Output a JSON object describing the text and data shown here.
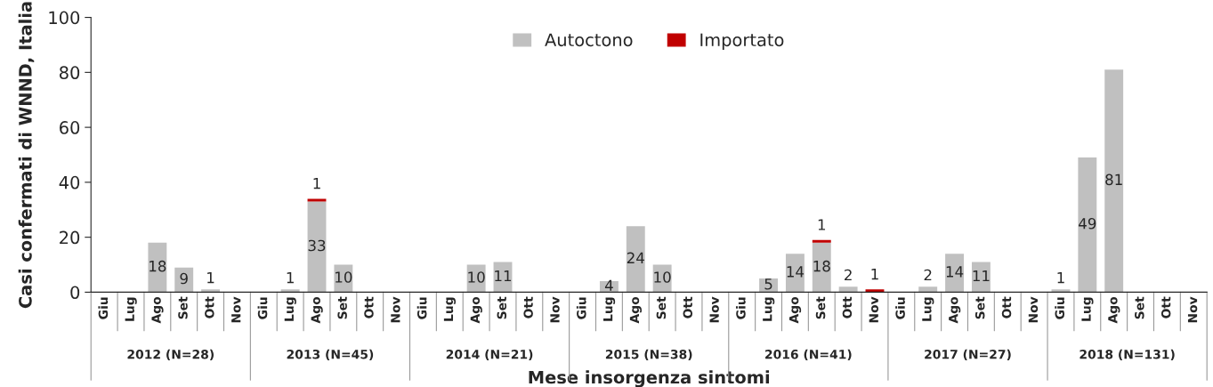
{
  "chart_data": {
    "type": "bar",
    "stacked": true,
    "ylabel": "Casi confermati di WNND, Italia",
    "xlabel": "Mese insorgenza sintomi",
    "categories": [
      "Giu",
      "Lug",
      "Ago",
      "Set",
      "Ott",
      "Nov",
      "Giu",
      "Lug",
      "Ago",
      "Set",
      "Ott",
      "Nov",
      "Giu",
      "Lug",
      "Ago",
      "Set",
      "Ott",
      "Nov",
      "Giu",
      "Lug",
      "Ago",
      "Set",
      "Ott",
      "Nov",
      "Giu",
      "Lug",
      "Ago",
      "Set",
      "Ott",
      "Nov",
      "Giu",
      "Lug",
      "Ago",
      "Set",
      "Ott",
      "Nov",
      "Giu",
      "Lug",
      "Ago",
      "Set",
      "Ott",
      "Nov"
    ],
    "annotations": [
      "2012 (N=28)",
      "2013 (N=45)",
      "2014 (N=21)",
      "2015 (N=38)",
      "2016 (N=41)",
      "2017 (N=27)",
      "2018 (N=131)"
    ],
    "series": [
      {
        "name": "Autoctono",
        "color": "#c0c0c0",
        "values": [
          0,
          0,
          18,
          9,
          1,
          0,
          0,
          1,
          33,
          10,
          0,
          0,
          0,
          0,
          10,
          11,
          0,
          0,
          0,
          4,
          24,
          10,
          0,
          0,
          0,
          5,
          14,
          18,
          2,
          0,
          0,
          2,
          14,
          11,
          0,
          0,
          1,
          49,
          81,
          0,
          0,
          0
        ],
        "value_labels": [
          null,
          null,
          "18",
          "9",
          "1",
          null,
          null,
          "1",
          "33",
          "10",
          null,
          null,
          null,
          null,
          "10",
          "11",
          null,
          null,
          null,
          "4",
          "24",
          "10",
          null,
          null,
          null,
          "5",
          "14",
          "18",
          "2",
          null,
          null,
          "2",
          "14",
          "11",
          null,
          null,
          "1",
          "49",
          "81",
          null,
          null,
          null
        ]
      },
      {
        "name": "Importato",
        "color": "#c00000",
        "values": [
          0,
          0,
          0,
          0,
          0,
          0,
          0,
          0,
          1,
          0,
          0,
          0,
          0,
          0,
          0,
          0,
          0,
          0,
          0,
          0,
          0,
          0,
          0,
          0,
          0,
          0,
          0,
          1,
          0,
          1,
          0,
          0,
          0,
          0,
          0,
          0,
          0,
          0,
          0,
          0,
          0,
          0
        ],
        "value_labels": [
          null,
          null,
          null,
          null,
          null,
          null,
          null,
          null,
          "1",
          null,
          null,
          null,
          null,
          null,
          null,
          null,
          null,
          null,
          null,
          null,
          null,
          null,
          null,
          null,
          null,
          null,
          null,
          "1",
          null,
          "1",
          null,
          null,
          null,
          null,
          null,
          null,
          null,
          null,
          null,
          null,
          null,
          null
        ]
      }
    ],
    "ylim": [
      0,
      100
    ],
    "yticks": [
      0,
      20,
      40,
      60,
      80,
      100
    ],
    "grid": false,
    "legend": "top"
  }
}
